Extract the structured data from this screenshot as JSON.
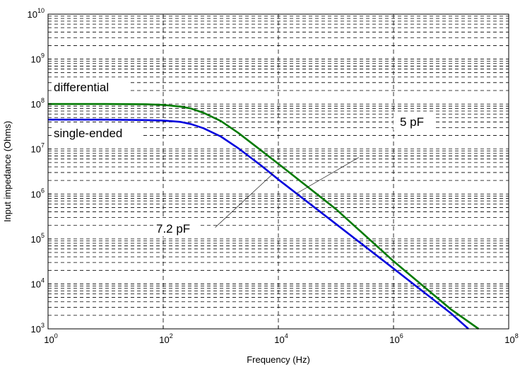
{
  "chart_data": {
    "type": "line",
    "title": "",
    "xlabel": "Frequency (Hz)",
    "ylabel": "Input impedance (Ohms)",
    "xscale": "log",
    "yscale": "log",
    "xlim": [
      1,
      100000000
    ],
    "ylim": [
      1000,
      10000000000
    ],
    "grid": true,
    "x_ticks": [
      {
        "base": "10",
        "exp": "0",
        "value": 1
      },
      {
        "base": "10",
        "exp": "2",
        "value": 100
      },
      {
        "base": "10",
        "exp": "4",
        "value": 10000
      },
      {
        "base": "10",
        "exp": "6",
        "value": 1000000
      },
      {
        "base": "10",
        "exp": "8",
        "value": 100000000
      }
    ],
    "y_ticks": [
      {
        "base": "10",
        "exp": "3",
        "value": 1000
      },
      {
        "base": "10",
        "exp": "4",
        "value": 10000
      },
      {
        "base": "10",
        "exp": "5",
        "value": 100000
      },
      {
        "base": "10",
        "exp": "6",
        "value": 1000000
      },
      {
        "base": "10",
        "exp": "7",
        "value": 10000000
      },
      {
        "base": "10",
        "exp": "8",
        "value": 100000000
      },
      {
        "base": "10",
        "exp": "9",
        "value": 1000000000
      },
      {
        "base": "10",
        "exp": "10",
        "value": 10000000000
      }
    ],
    "series": [
      {
        "name": "differential",
        "color": "#007a00",
        "x": [
          1,
          10,
          50,
          100,
          200,
          300,
          500,
          1000,
          2000,
          5000,
          10000,
          100000,
          1000000,
          10000000,
          30000000
        ],
        "y": [
          100000000,
          100000000,
          99000000,
          96000000,
          88000000,
          80000000,
          64000000,
          42000000,
          23000000,
          9300000,
          4700000,
          460000,
          32000,
          2700,
          1000
        ]
      },
      {
        "name": "single-ended",
        "color": "#0000dd",
        "x": [
          1,
          10,
          50,
          100,
          200,
          300,
          500,
          1000,
          2000,
          5000,
          10000,
          100000,
          1000000,
          10000000,
          20000000
        ],
        "y": [
          45000000,
          45000000,
          44000000,
          43000000,
          40000000,
          36000000,
          29000000,
          19000000,
          10500000,
          4300000,
          2100000,
          215000,
          22000,
          2200,
          1000
        ]
      }
    ],
    "annotations": [
      {
        "text": "differential",
        "role": "series-label"
      },
      {
        "text": "single-ended",
        "role": "series-label"
      },
      {
        "text": "5 pF",
        "role": "callout"
      },
      {
        "text": "7.2 pF",
        "role": "callout"
      }
    ]
  }
}
